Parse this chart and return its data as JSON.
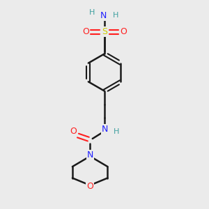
{
  "background_color": "#ebebeb",
  "bond_color": "#1a1a1a",
  "N_color": "#2020ff",
  "O_color": "#ff2020",
  "S_color": "#cccc00",
  "H_color": "#40a0a0",
  "figsize": [
    3.0,
    3.0
  ],
  "dpi": 100,
  "xlim": [
    0,
    10
  ],
  "ylim": [
    0,
    10
  ]
}
